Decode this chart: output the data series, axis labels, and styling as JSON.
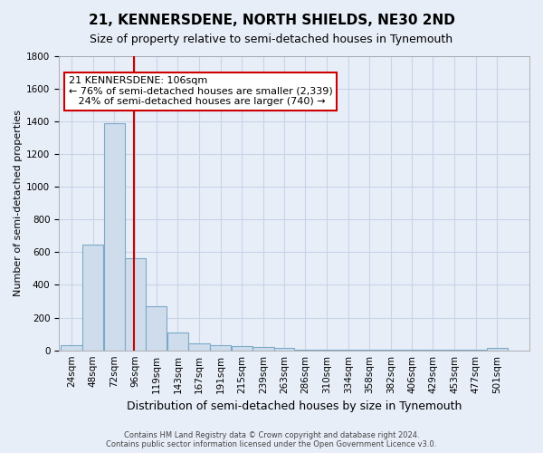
{
  "title": "21, KENNERSDENE, NORTH SHIELDS, NE30 2ND",
  "subtitle": "Size of property relative to semi-detached houses in Tynemouth",
  "xlabel": "Distribution of semi-detached houses by size in Tynemouth",
  "ylabel": "Number of semi-detached properties",
  "footer_line1": "Contains HM Land Registry data © Crown copyright and database right 2024.",
  "footer_line2": "Contains public sector information licensed under the Open Government Licence v3.0.",
  "bin_labels": [
    "24sqm",
    "48sqm",
    "72sqm",
    "96sqm",
    "119sqm",
    "143sqm",
    "167sqm",
    "191sqm",
    "215sqm",
    "239sqm",
    "263sqm",
    "286sqm",
    "310sqm",
    "334sqm",
    "358sqm",
    "382sqm",
    "406sqm",
    "429sqm",
    "453sqm",
    "477sqm",
    "501sqm"
  ],
  "bar_values": [
    30,
    645,
    1385,
    565,
    270,
    110,
    40,
    30,
    25,
    20,
    15,
    5,
    5,
    5,
    5,
    5,
    5,
    5,
    5,
    5,
    15
  ],
  "bar_color": "#cfdcec",
  "bar_edge_color": "#7aaac8",
  "grid_color": "#c8d4e8",
  "background_color": "#e8eef8",
  "vline_color": "#cc0000",
  "annotation_line1": "21 KENNERSDENE: 106sqm",
  "annotation_line2": "← 76% of semi-detached houses are smaller (2,339)",
  "annotation_line3": "   24% of semi-detached houses are larger (740) →",
  "annotation_box_color": "#ffffff",
  "annotation_border_color": "#cc0000",
  "ylim": [
    0,
    1800
  ],
  "yticks": [
    0,
    200,
    400,
    600,
    800,
    1000,
    1200,
    1400,
    1600,
    1800
  ],
  "bin_edges": [
    24,
    48,
    72,
    96,
    119,
    143,
    167,
    191,
    215,
    239,
    263,
    286,
    310,
    334,
    358,
    382,
    406,
    429,
    453,
    477,
    501,
    525
  ],
  "vline_x_bin_index": 3,
  "title_fontsize": 11,
  "subtitle_fontsize": 9,
  "xlabel_fontsize": 9,
  "ylabel_fontsize": 8,
  "tick_fontsize": 7.5,
  "annotation_fontsize": 8,
  "footer_fontsize": 6
}
